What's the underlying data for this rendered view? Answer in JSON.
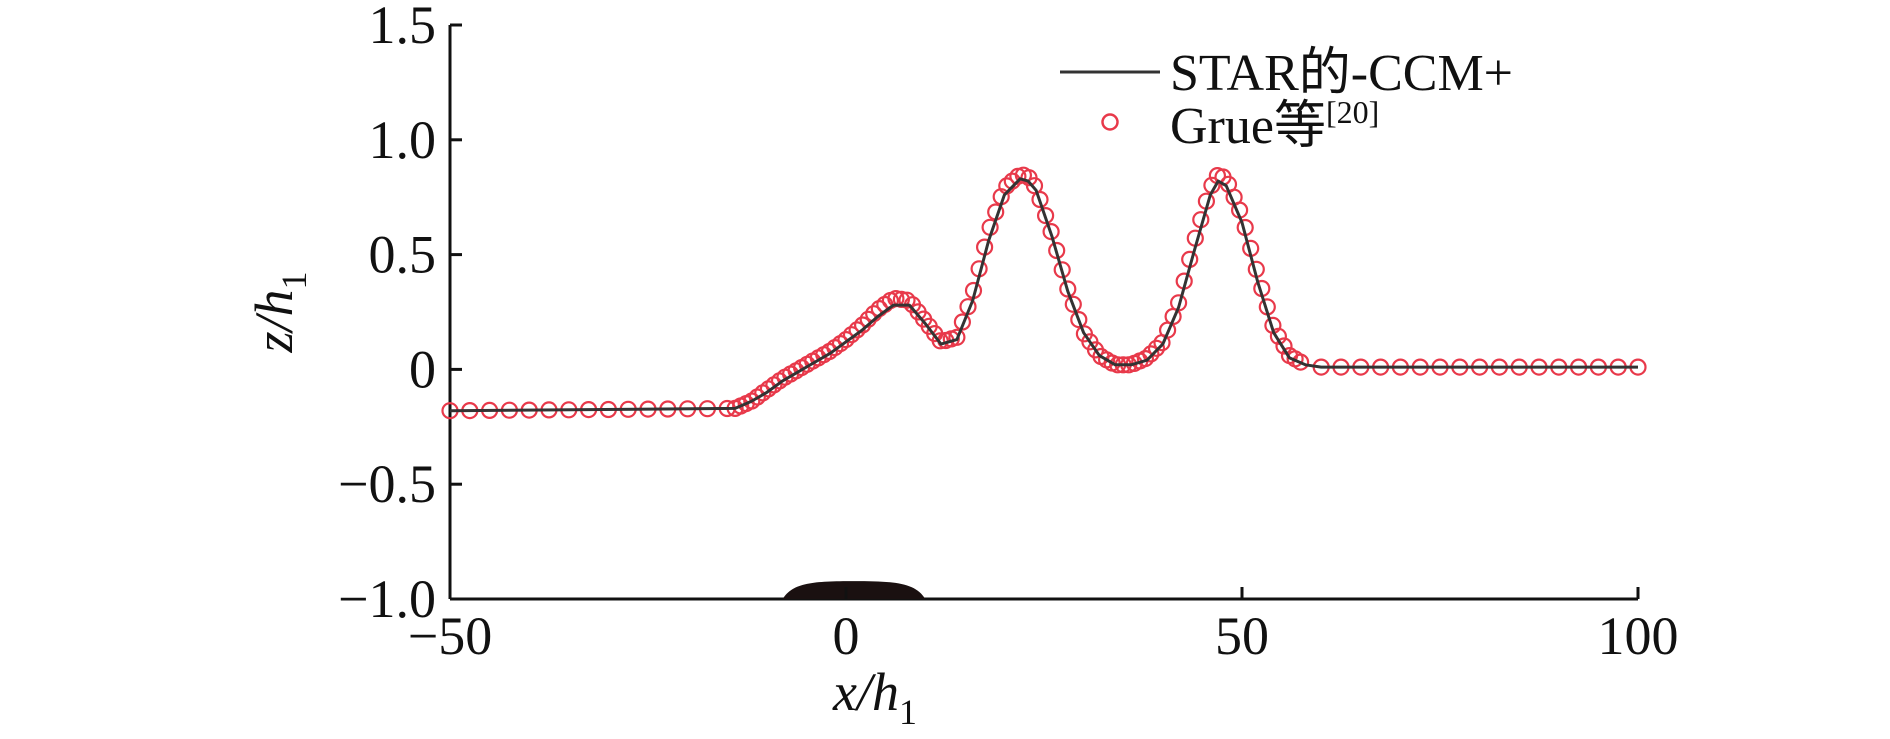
{
  "chart_data": {
    "type": "line",
    "xlabel": {
      "main": "x/h",
      "sub": "1"
    },
    "ylabel": {
      "main": "z/h",
      "sub": "1"
    },
    "xlim": [
      -50,
      100
    ],
    "ylim": [
      -1.0,
      1.5
    ],
    "xticks": [
      -50,
      0,
      50,
      100
    ],
    "xtick_labels": [
      "−50",
      "0",
      "50",
      "100"
    ],
    "yticks": [
      -1.0,
      -0.5,
      0,
      0.5,
      1.0,
      1.5
    ],
    "ytick_labels": [
      "−1.0",
      "−0.5",
      "0",
      "0.5",
      "1.0",
      "1.5"
    ],
    "grid": false,
    "legend_position": "top-right",
    "series": [
      {
        "name": "STAR的-CCM+",
        "style": "line",
        "color": "#333333",
        "x": [
          -50,
          -14,
          -12,
          -10,
          -8,
          -6,
          -4,
          -2,
          0,
          2,
          4,
          6,
          8,
          10,
          12,
          14,
          16,
          18,
          20,
          22,
          23,
          24,
          26,
          28,
          30,
          32,
          34,
          36,
          38,
          40,
          42,
          44,
          46,
          47,
          48,
          50,
          52,
          54,
          56,
          58,
          60,
          70,
          80,
          90,
          100
        ],
        "y": [
          -0.18,
          -0.17,
          -0.14,
          -0.1,
          -0.05,
          -0.01,
          0.03,
          0.07,
          0.12,
          0.17,
          0.23,
          0.28,
          0.28,
          0.2,
          0.11,
          0.13,
          0.3,
          0.56,
          0.76,
          0.83,
          0.82,
          0.78,
          0.58,
          0.34,
          0.16,
          0.06,
          0.02,
          0.02,
          0.04,
          0.11,
          0.27,
          0.52,
          0.76,
          0.82,
          0.8,
          0.64,
          0.38,
          0.16,
          0.05,
          0.02,
          0.01,
          0.01,
          0.01,
          0.01,
          0.01
        ]
      },
      {
        "name": "Grue等",
        "name_superscript": "[20]",
        "style": "markers",
        "marker": "open-circle",
        "color": "#e8394a",
        "x": [
          -50,
          -14,
          -12,
          -10,
          -8,
          -6,
          -4,
          -2,
          0,
          2,
          4,
          6,
          8,
          10,
          12,
          14,
          16,
          18,
          20,
          22,
          23,
          24,
          26,
          28,
          30,
          32,
          34,
          36,
          38,
          40,
          42,
          44,
          46,
          47,
          48,
          50,
          52,
          54,
          56,
          58,
          60,
          70,
          80,
          90,
          100
        ],
        "y": [
          -0.18,
          -0.17,
          -0.14,
          -0.09,
          -0.04,
          0.0,
          0.04,
          0.08,
          0.13,
          0.19,
          0.26,
          0.31,
          0.3,
          0.21,
          0.12,
          0.14,
          0.33,
          0.6,
          0.79,
          0.85,
          0.84,
          0.79,
          0.59,
          0.35,
          0.16,
          0.06,
          0.02,
          0.02,
          0.05,
          0.12,
          0.29,
          0.56,
          0.79,
          0.85,
          0.83,
          0.67,
          0.41,
          0.18,
          0.06,
          0.02,
          0.01,
          0.01,
          0.01,
          0.01,
          0.01
        ]
      }
    ],
    "annotations": [
      {
        "type": "bump",
        "x_range": [
          -8,
          10
        ],
        "height": 0.06,
        "color": "#1a1010"
      }
    ]
  }
}
